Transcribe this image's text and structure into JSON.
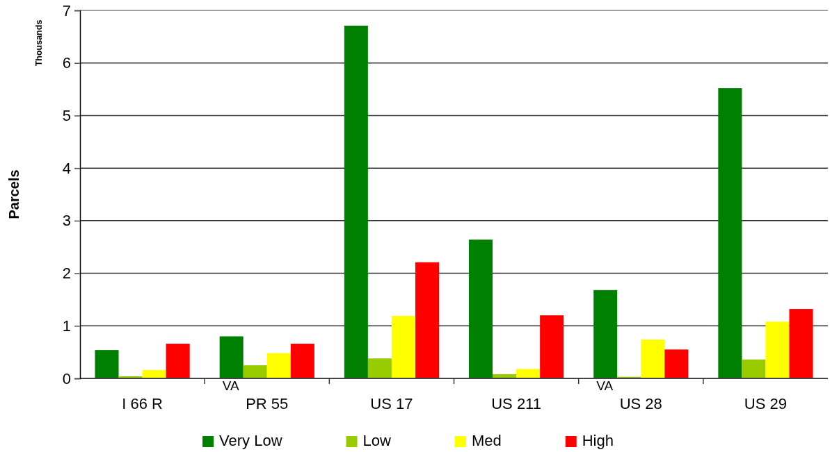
{
  "chart_data": {
    "type": "bar",
    "ylabel": "Parcels",
    "categories": [
      "I 66 R",
      "PR 55",
      "US 17",
      "US 211",
      "US 28",
      "US 29"
    ],
    "series": [
      {
        "name": "Very Low",
        "color": "#008000",
        "values": [
          0.54,
          0.8,
          6.71,
          2.64,
          1.68,
          5.52
        ]
      },
      {
        "name": "Low",
        "color": "#99cc00",
        "values": [
          0.04,
          0.25,
          0.38,
          0.08,
          0.03,
          0.36
        ]
      },
      {
        "name": "Med",
        "color": "#ffff00",
        "values": [
          0.16,
          0.48,
          1.19,
          0.18,
          0.74,
          1.08
        ]
      },
      {
        "name": "High",
        "color": "#ff0000",
        "values": [
          0.66,
          0.66,
          2.21,
          1.2,
          0.55,
          1.32
        ]
      }
    ],
    "ylim": [
      0,
      7
    ],
    "yticks": [
      0,
      1,
      2,
      3,
      4,
      5,
      6,
      7
    ],
    "grid": "y",
    "legend": "bottom",
    "annotations": [
      "Thousands",
      {
        "text": "VA",
        "x": "PR 55",
        "y": 0
      },
      {
        "text": "VA",
        "x": "US 28",
        "y": 0
      }
    ]
  }
}
